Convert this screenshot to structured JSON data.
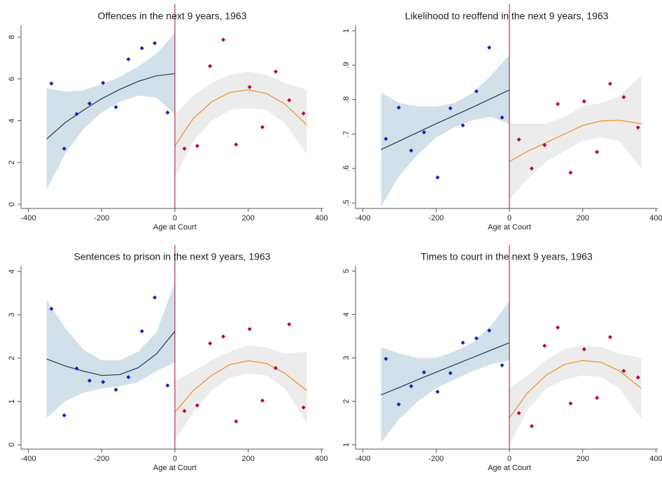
{
  "chart_data": [
    {
      "type": "scatter",
      "title": "Offences in the next 9 years, 1963",
      "xlabel": "Age at Court",
      "xlim": [
        -420,
        405
      ],
      "xticks": [
        -400,
        -200,
        0,
        200,
        400
      ],
      "ylim": [
        -0.2,
        8.57
      ],
      "yticks": [
        0,
        2,
        4,
        6,
        8
      ],
      "cutoff": 0,
      "cutoff_color": "#a0103a",
      "points": [
        {
          "color": "#1c1cc0",
          "x": [
            -337,
            -302,
            -268,
            -233,
            -196,
            -161,
            -127,
            -90,
            -55,
            -20
          ],
          "values": [
            5.78,
            2.66,
            4.32,
            4.82,
            5.81,
            4.65,
            6.94,
            7.47,
            7.71,
            4.39
          ]
        },
        {
          "color": "#b8003c",
          "x": [
            26,
            61,
            96,
            132,
            167,
            204,
            239,
            275,
            312,
            351
          ],
          "values": [
            2.66,
            2.79,
            6.61,
            7.87,
            2.86,
            5.61,
            3.69,
            6.35,
            4.98,
            4.35
          ]
        }
      ],
      "fits": [
        {
          "color": "#1a3a5a",
          "band_color": "#d2e0e9",
          "x": [
            -350,
            -300,
            -250,
            -200,
            -150,
            -100,
            -50,
            0
          ],
          "values": [
            3.12,
            3.9,
            4.5,
            5.05,
            5.5,
            5.88,
            6.15,
            6.25
          ],
          "lower": [
            0.7,
            2.4,
            3.6,
            4.4,
            4.9,
            5.2,
            5.1,
            4.3
          ],
          "upper": [
            5.55,
            5.4,
            5.45,
            5.75,
            6.1,
            6.6,
            7.2,
            8.2
          ]
        },
        {
          "color": "#f08a1c",
          "band_color": "#ececec",
          "x": [
            0,
            50,
            100,
            150,
            200,
            250,
            300,
            360
          ],
          "values": [
            2.8,
            4.1,
            4.9,
            5.35,
            5.48,
            5.3,
            4.8,
            3.8
          ],
          "lower": [
            1.3,
            3.0,
            4.0,
            4.5,
            4.6,
            4.5,
            3.9,
            2.4
          ],
          "upper": [
            4.3,
            5.2,
            5.8,
            6.2,
            6.35,
            6.2,
            5.8,
            5.5
          ]
        }
      ]
    },
    {
      "type": "scatter",
      "title": "Likelihood to reoffend in the next 9 years, 1963",
      "xlabel": "Age at Court",
      "xlim": [
        -420,
        405
      ],
      "xticks": [
        -400,
        -200,
        0,
        200,
        400
      ],
      "ylim": [
        0.484,
        1.016
      ],
      "yticks": [
        {
          "value": 0.5,
          "label": ".5"
        },
        {
          "value": 0.6,
          "label": ".6"
        },
        {
          "value": 0.7,
          "label": ".7"
        },
        {
          "value": 0.8,
          "label": ".8"
        },
        {
          "value": 0.9,
          "label": ".9"
        },
        1
      ],
      "cutoff": 0,
      "cutoff_color": "#a0103a",
      "points": [
        {
          "color": "#1c1cc0",
          "x": [
            -337,
            -302,
            -268,
            -233,
            -196,
            -161,
            -127,
            -90,
            -55,
            -20
          ],
          "values": [
            0.686,
            0.777,
            0.652,
            0.705,
            0.574,
            0.775,
            0.725,
            0.824,
            0.951,
            0.748
          ]
        },
        {
          "color": "#b8003c",
          "x": [
            26,
            61,
            96,
            132,
            167,
            204,
            239,
            275,
            312,
            351
          ],
          "values": [
            0.684,
            0.6,
            0.668,
            0.787,
            0.588,
            0.795,
            0.648,
            0.846,
            0.807,
            0.719
          ]
        }
      ],
      "fits": [
        {
          "color": "#1a3a5a",
          "band_color": "#d2e0e9",
          "x": [
            -350,
            -300,
            -250,
            -200,
            -150,
            -100,
            -50,
            0
          ],
          "values": [
            0.655,
            0.68,
            0.705,
            0.73,
            0.754,
            0.778,
            0.803,
            0.828
          ],
          "lower": [
            0.49,
            0.58,
            0.64,
            0.69,
            0.72,
            0.74,
            0.75,
            0.73
          ],
          "upper": [
            0.82,
            0.79,
            0.78,
            0.78,
            0.79,
            0.82,
            0.87,
            0.93
          ]
        },
        {
          "color": "#f08a1c",
          "band_color": "#ececec",
          "x": [
            0,
            50,
            100,
            150,
            200,
            250,
            300,
            360
          ],
          "values": [
            0.62,
            0.65,
            0.675,
            0.7,
            0.725,
            0.738,
            0.74,
            0.73
          ],
          "lower": [
            0.51,
            0.57,
            0.62,
            0.65,
            0.68,
            0.69,
            0.68,
            0.6
          ],
          "upper": [
            0.73,
            0.73,
            0.73,
            0.75,
            0.78,
            0.79,
            0.81,
            0.87
          ]
        }
      ]
    },
    {
      "type": "scatter",
      "title": "Sentences to prison in the next 9 years, 1963",
      "xlabel": "Age at Court",
      "xlim": [
        -420,
        405
      ],
      "xticks": [
        -400,
        -200,
        0,
        200,
        400
      ],
      "ylim": [
        -0.1,
        4.13
      ],
      "yticks": [
        0,
        1,
        2,
        3,
        4
      ],
      "cutoff": 0,
      "cutoff_color": "#a0103a",
      "points": [
        {
          "color": "#1c1cc0",
          "x": [
            -337,
            -302,
            -268,
            -233,
            -196,
            -161,
            -127,
            -90,
            -55,
            -20
          ],
          "values": [
            3.14,
            0.68,
            1.76,
            1.48,
            1.45,
            1.27,
            1.56,
            2.62,
            3.4,
            1.37
          ]
        },
        {
          "color": "#b8003c",
          "x": [
            26,
            61,
            96,
            132,
            167,
            204,
            239,
            275,
            312,
            351
          ],
          "values": [
            0.78,
            0.91,
            2.34,
            2.5,
            0.54,
            2.67,
            1.02,
            1.77,
            2.78,
            0.86
          ]
        }
      ],
      "fits": [
        {
          "color": "#1a3a5a",
          "band_color": "#d2e0e9",
          "x": [
            -350,
            -300,
            -250,
            -200,
            -150,
            -100,
            -50,
            0
          ],
          "values": [
            1.98,
            1.82,
            1.7,
            1.6,
            1.62,
            1.78,
            2.1,
            2.62
          ],
          "lower": [
            0.62,
            1.0,
            1.2,
            1.3,
            1.35,
            1.45,
            1.7,
            1.9
          ],
          "upper": [
            3.35,
            2.7,
            2.2,
            1.95,
            1.95,
            2.15,
            2.6,
            3.75
          ]
        },
        {
          "color": "#f08a1c",
          "band_color": "#ececec",
          "x": [
            0,
            50,
            100,
            150,
            200,
            250,
            300,
            360
          ],
          "values": [
            0.75,
            1.25,
            1.6,
            1.85,
            1.94,
            1.88,
            1.65,
            1.25
          ],
          "lower": [
            0.1,
            0.75,
            1.25,
            1.55,
            1.65,
            1.6,
            1.3,
            0.5
          ],
          "upper": [
            1.45,
            1.7,
            1.95,
            2.15,
            2.3,
            2.25,
            2.1,
            2.15
          ]
        }
      ]
    },
    {
      "type": "scatter",
      "title": "Times to court in the next 9 years, 1963",
      "xlabel": "Age at Court",
      "xlim": [
        -420,
        405
      ],
      "xticks": [
        -400,
        -200,
        0,
        200,
        400
      ],
      "ylim": [
        0.9,
        5.12
      ],
      "yticks": [
        1,
        2,
        3,
        4,
        5
      ],
      "cutoff": 0,
      "cutoff_color": "#a0103a",
      "points": [
        {
          "color": "#1c1cc0",
          "x": [
            -337,
            -302,
            -268,
            -233,
            -196,
            -161,
            -127,
            -90,
            -55,
            -20
          ],
          "values": [
            2.98,
            1.93,
            2.35,
            2.67,
            2.22,
            2.65,
            3.35,
            3.45,
            3.63,
            2.83
          ]
        },
        {
          "color": "#b8003c",
          "x": [
            26,
            61,
            96,
            132,
            167,
            204,
            239,
            275,
            312,
            351
          ],
          "values": [
            1.73,
            1.43,
            3.28,
            3.7,
            1.95,
            3.2,
            2.08,
            3.48,
            2.7,
            2.55
          ]
        }
      ],
      "fits": [
        {
          "color": "#1a3a5a",
          "band_color": "#d2e0e9",
          "x": [
            -350,
            -300,
            -250,
            -200,
            -150,
            -100,
            -50,
            0
          ],
          "values": [
            2.15,
            2.32,
            2.5,
            2.67,
            2.84,
            3.01,
            3.18,
            3.35
          ],
          "lower": [
            1.05,
            1.6,
            2.0,
            2.3,
            2.5,
            2.7,
            2.85,
            2.95
          ],
          "upper": [
            3.25,
            3.1,
            3.0,
            3.0,
            3.15,
            3.35,
            3.75,
            4.3
          ]
        },
        {
          "color": "#f08a1c",
          "band_color": "#ececec",
          "x": [
            0,
            50,
            100,
            150,
            200,
            250,
            300,
            360
          ],
          "values": [
            1.62,
            2.2,
            2.6,
            2.85,
            2.94,
            2.9,
            2.7,
            2.3
          ],
          "lower": [
            1.0,
            1.8,
            2.3,
            2.5,
            2.6,
            2.55,
            2.3,
            1.6
          ],
          "upper": [
            2.3,
            2.6,
            2.95,
            3.2,
            3.3,
            3.25,
            3.1,
            3.0
          ]
        }
      ]
    }
  ]
}
